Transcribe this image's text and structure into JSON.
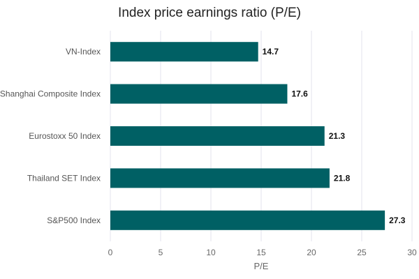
{
  "chart_data": {
    "type": "bar",
    "orientation": "horizontal",
    "title": "Index price earnings ratio (P/E)",
    "xlabel": "P/E",
    "ylabel": "",
    "categories": [
      "VN-Index",
      "Shanghai Composite Index",
      "Eurostoxx 50 Index",
      "Thailand SET Index",
      "S&P500 Index"
    ],
    "values": [
      14.7,
      17.6,
      21.3,
      21.8,
      27.3
    ],
    "data_labels": [
      "14.7",
      "17.6",
      "21.3",
      "21.8",
      "27.3"
    ],
    "xlim": [
      0,
      30
    ],
    "x_ticks": [
      "0",
      "5",
      "10",
      "15",
      "20",
      "25",
      "30"
    ],
    "grid": "vertical",
    "legend": "none",
    "bar_color": "#006064",
    "grid_color": "#e3e3ee"
  }
}
